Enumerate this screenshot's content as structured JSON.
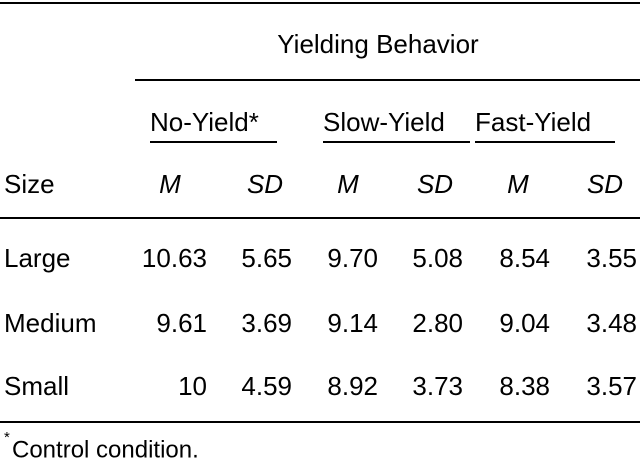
{
  "header": {
    "title": "Yielding Behavior",
    "groups": [
      "No-Yield*",
      "Slow-Yield",
      "Fast-Yield"
    ],
    "columns": [
      "Size",
      "M",
      "SD",
      "M",
      "SD",
      "M",
      "SD"
    ]
  },
  "table": {
    "rows": [
      [
        "Large",
        "10.63",
        "5.65",
        "9.70",
        "5.08",
        "8.54",
        "3.55"
      ],
      [
        "Medium",
        "9.61",
        "3.69",
        "9.14",
        "2.80",
        "9.04",
        "3.48"
      ],
      [
        "Small",
        "10",
        "4.59",
        "8.92",
        "3.73",
        "8.38",
        "3.57"
      ]
    ]
  },
  "footnote": {
    "marker": "*",
    "text": "Control condition."
  }
}
